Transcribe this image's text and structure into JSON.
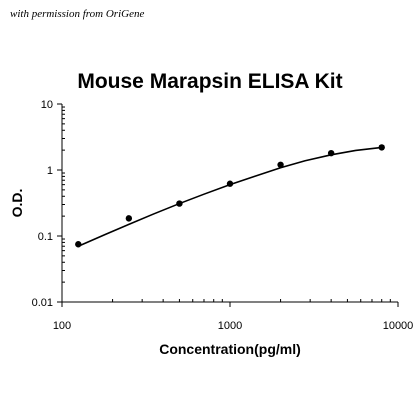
{
  "watermark": "with permission from OriGene",
  "chart_data": {
    "type": "scatter",
    "title": "Mouse Marapsin ELISA Kit",
    "xlabel": "Concentration(pg/ml)",
    "ylabel": "O.D.",
    "xscale": "log",
    "yscale": "log",
    "xlim": [
      100,
      10000
    ],
    "ylim": [
      0.01,
      10
    ],
    "xticks": [
      "100",
      "1000",
      "10000"
    ],
    "yticks": [
      "10",
      "1",
      "0.1",
      "0.01"
    ],
    "grid": false,
    "legend": "none",
    "series": [
      {
        "x": [
          125,
          250,
          500,
          1000,
          2000,
          4000,
          8000
        ],
        "y": [
          0.075,
          0.185,
          0.31,
          0.62,
          1.2,
          1.8,
          2.2
        ]
      }
    ],
    "fit_curve": {
      "x": [
        125,
        180,
        250,
        350,
        500,
        700,
        1000,
        1400,
        2000,
        2800,
        4000,
        5600,
        8000
      ],
      "y": [
        0.07,
        0.105,
        0.15,
        0.215,
        0.31,
        0.43,
        0.6,
        0.8,
        1.08,
        1.38,
        1.7,
        1.98,
        2.2
      ]
    },
    "colors": {
      "marker": "#000000",
      "line": "#000000",
      "axis": "#000000"
    }
  }
}
